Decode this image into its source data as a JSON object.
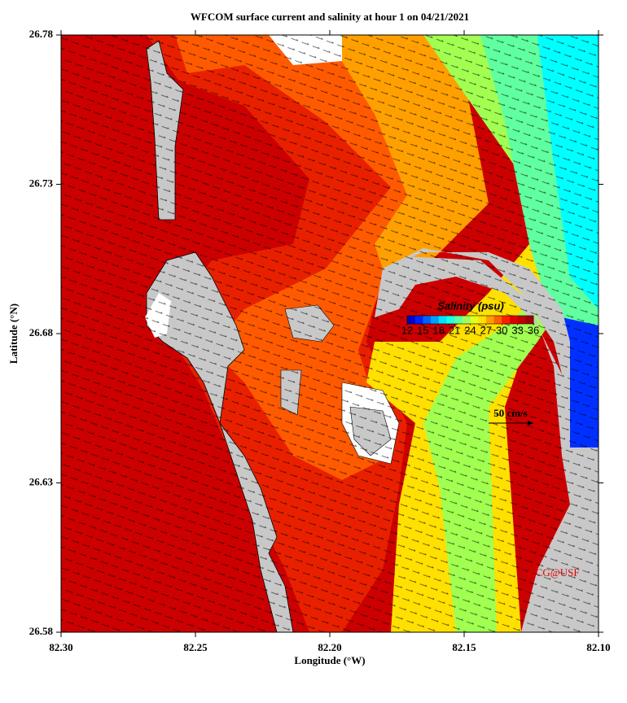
{
  "chart_data": {
    "type": "map",
    "title": "WFCOM surface current and salinity at hour 1 on 04/21/2021",
    "x_label": "Longitude (°W)",
    "y_label": "Latitude (°N)",
    "xlim": [
      82.3,
      82.1
    ],
    "xticks": [
      {
        "value": 82.3,
        "label": "82.30"
      },
      82.25,
      {
        "value": 82.2,
        "label": "82.20"
      },
      82.15,
      {
        "value": 82.1,
        "label": "82.10"
      }
    ],
    "ylim": [
      26.58,
      26.78
    ],
    "yticks": [
      26.58,
      26.63,
      26.68,
      26.73,
      26.78
    ],
    "colorbar": {
      "title": "Salinity (psu)",
      "lim": [
        12,
        36
      ],
      "ticks": [
        12,
        15,
        18,
        21,
        24,
        27,
        30,
        33,
        36
      ],
      "colors": [
        "#0000c8",
        "#0020ff",
        "#0060ff",
        "#00a0ff",
        "#00e0ff",
        "#20ffe0",
        "#60ffa0",
        "#a0ff60",
        "#e0ff20",
        "#ffe000",
        "#ffa000",
        "#ff6000",
        "#ff2000",
        "#e00000",
        "#c00000",
        "#a00000"
      ]
    },
    "scale_label": "50 cm/s",
    "credit": "OCG@USF"
  }
}
